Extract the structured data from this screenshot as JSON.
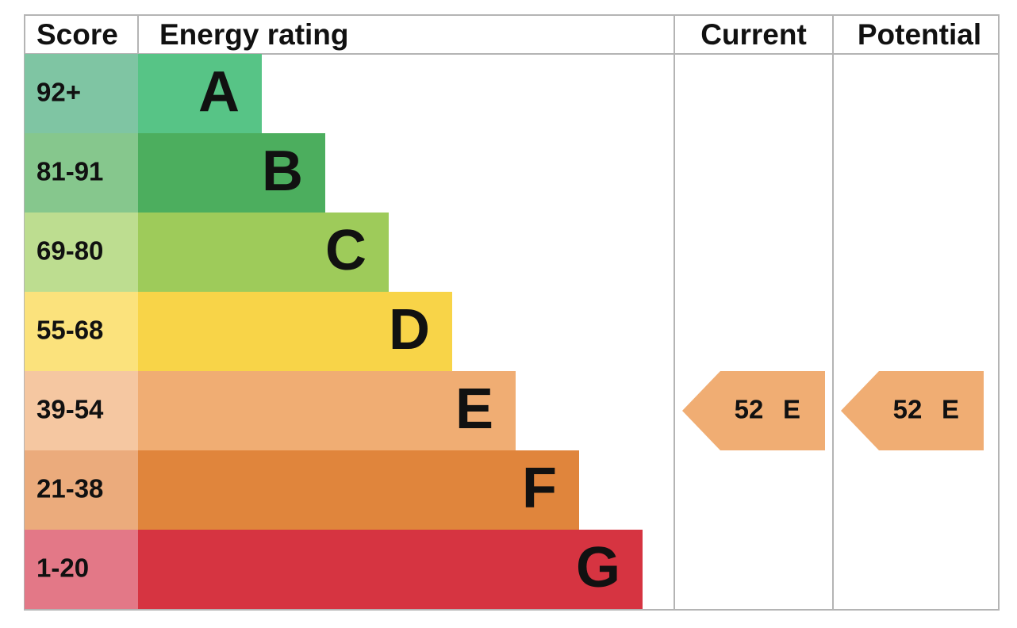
{
  "header": {
    "score": "Score",
    "rating": "Energy rating",
    "current": "Current",
    "potential": "Potential"
  },
  "rows": [
    {
      "score": "92+",
      "band": "A"
    },
    {
      "score": "81-91",
      "band": "B"
    },
    {
      "score": "69-80",
      "band": "C"
    },
    {
      "score": "55-68",
      "band": "D"
    },
    {
      "score": "39-54",
      "band": "E"
    },
    {
      "score": "21-38",
      "band": "F"
    },
    {
      "score": "1-20",
      "band": "G"
    }
  ],
  "current": {
    "score": 52,
    "band": "E"
  },
  "potential": {
    "score": 52,
    "band": "E"
  }
}
